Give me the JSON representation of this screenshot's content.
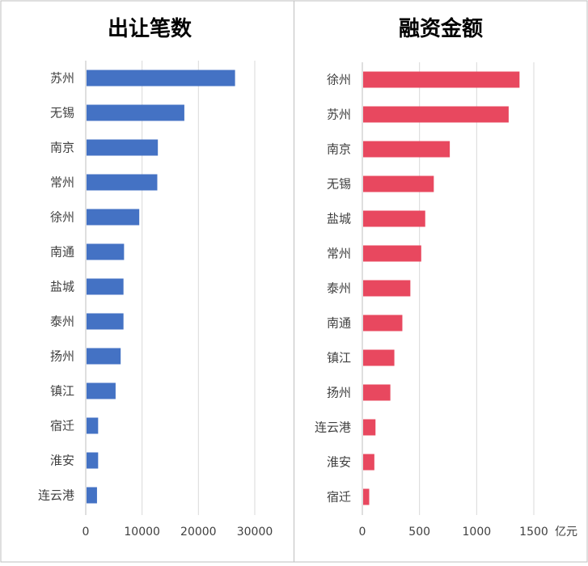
{
  "chart_data": [
    {
      "type": "bar",
      "orientation": "horizontal",
      "title": "出让笔数",
      "categories": [
        "苏州",
        "无锡",
        "南京",
        "常州",
        "徐州",
        "南通",
        "盐城",
        "泰州",
        "扬州",
        "镇江",
        "宿迁",
        "淮安",
        "连云港"
      ],
      "values": [
        26500,
        17500,
        12800,
        12700,
        9500,
        6800,
        6700,
        6700,
        6200,
        5300,
        2200,
        2200,
        2000
      ],
      "xlim": [
        0,
        30000
      ],
      "ticks": [
        0,
        10000,
        20000,
        30000
      ],
      "tick_labels": [
        "0",
        "10000",
        "20000",
        "30000"
      ],
      "unit": "",
      "color": "#4472C4",
      "grid": true
    },
    {
      "type": "bar",
      "orientation": "horizontal",
      "title": "融资金额",
      "categories": [
        "徐州",
        "苏州",
        "南京",
        "无锡",
        "盐城",
        "常州",
        "泰州",
        "南通",
        "镇江",
        "扬州",
        "连云港",
        "淮安",
        "宿迁"
      ],
      "values": [
        1375,
        1280,
        765,
        625,
        550,
        515,
        420,
        350,
        280,
        245,
        115,
        105,
        60
      ],
      "xlim": [
        0,
        1500
      ],
      "ticks": [
        0,
        500,
        1000,
        1500
      ],
      "tick_labels": [
        "0",
        "500",
        "1000",
        "1500"
      ],
      "unit": "亿元",
      "color": "#E8485F",
      "grid": true
    }
  ]
}
